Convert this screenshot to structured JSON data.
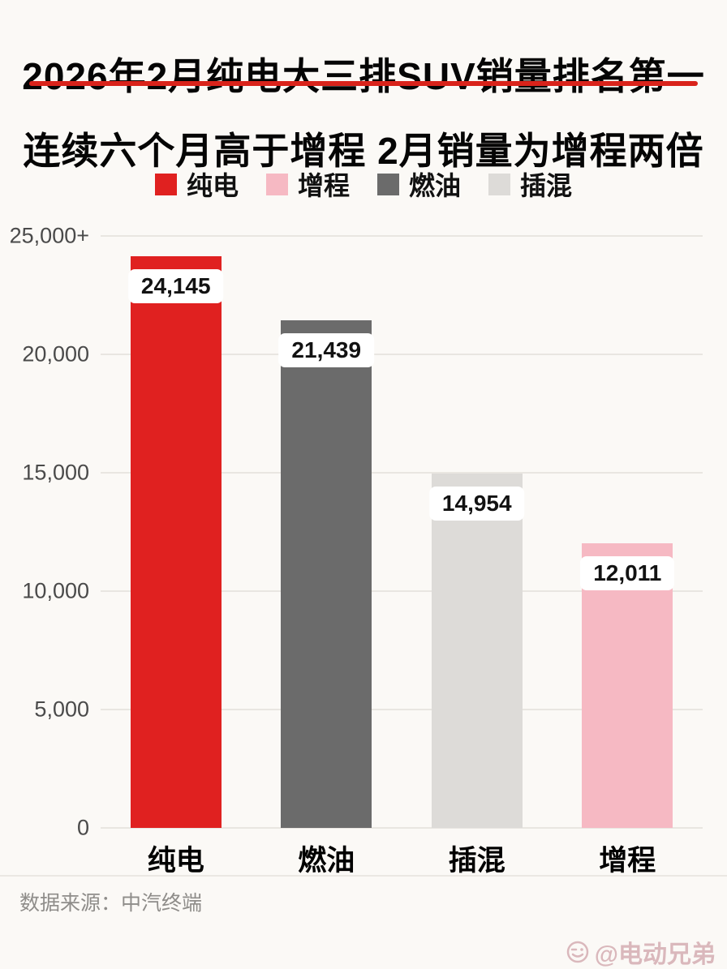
{
  "title_line1": "2026年2月纯电大三排SUV销量排名第一",
  "title_line2": "连续六个月高于增程 2月销量为增程两倍",
  "legend": [
    {
      "label": "纯电",
      "color": "#e02120"
    },
    {
      "label": "增程",
      "color": "#f6b9c3"
    },
    {
      "label": "燃油",
      "color": "#6b6b6b"
    },
    {
      "label": "插混",
      "color": "#dddbd8"
    }
  ],
  "chart_data": {
    "type": "bar",
    "categories": [
      "纯电",
      "燃油",
      "插混",
      "增程"
    ],
    "values": [
      24145,
      21439,
      14954,
      12011
    ],
    "value_labels": [
      "24,145",
      "21,439",
      "14,954",
      "12,011"
    ],
    "bar_colors": [
      "#e02120",
      "#6b6b6b",
      "#dddbd8",
      "#f6b9c3"
    ],
    "title": "2026年2月纯电大三排SUV销量排名第一 连续六个月高于增程 2月销量为增程两倍",
    "xlabel": "",
    "ylabel": "",
    "ylim": [
      0,
      25000
    ],
    "yticks": [
      {
        "value": 0,
        "label": "0"
      },
      {
        "value": 5000,
        "label": "5,000"
      },
      {
        "value": 10000,
        "label": "10,000"
      },
      {
        "value": 15000,
        "label": "15,000"
      },
      {
        "value": 20000,
        "label": "20,000"
      },
      {
        "value": 25000,
        "label": "25,000+"
      }
    ],
    "grid": true,
    "legend_position": "top"
  },
  "footer": {
    "source": "数据来源：中汽终端"
  },
  "watermark": {
    "text": "@电动兄弟"
  },
  "colors": {
    "accent_red": "#d9231b",
    "background": "#fbf9f6",
    "grid": "#e9e6e1",
    "watermark_pink": "#dab8bc"
  }
}
